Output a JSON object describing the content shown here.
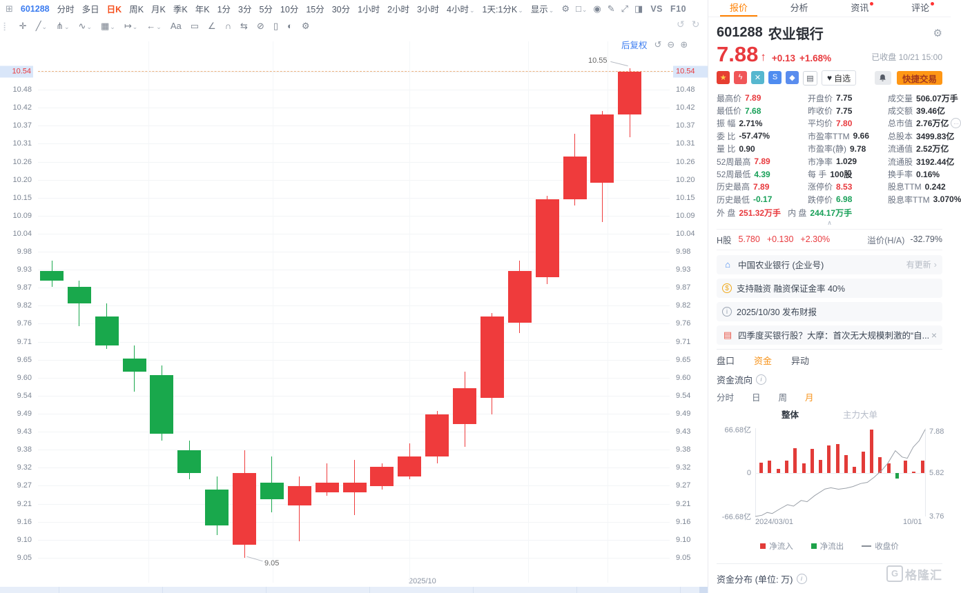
{
  "top_bar": {
    "window_icon": "⊞",
    "symbol": "601288",
    "timeframes": [
      "分时",
      "多日",
      "日K",
      "周K",
      "月K",
      "季K",
      "年K",
      "1分",
      "3分",
      "5分",
      "10分",
      "15分",
      "30分",
      "1小时",
      "2小时",
      "3小时"
    ],
    "timeframe_caret_item": "4小时",
    "active_timeframe": "日K",
    "interval_selector": "1天:1分K",
    "display_label": "显示",
    "vs_label": "VS",
    "f10_label": "F10",
    "icons": [
      {
        "name": "settings-icon",
        "glyph": "⚙"
      },
      {
        "name": "layout-icon",
        "glyph": "□",
        "caret": true
      },
      {
        "name": "camera-icon",
        "glyph": "◉"
      },
      {
        "name": "pencil-icon",
        "glyph": "✎"
      },
      {
        "name": "fullscreen-icon",
        "glyph": "⤢"
      },
      {
        "name": "sidebar-toggle-icon",
        "glyph": "◨"
      }
    ]
  },
  "panel_tabs": [
    {
      "label": "报价",
      "active": true,
      "dot": false
    },
    {
      "label": "分析",
      "active": false,
      "dot": false
    },
    {
      "label": "资讯",
      "active": false,
      "dot": true
    },
    {
      "label": "评论",
      "active": false,
      "dot": true
    }
  ],
  "draw_toolbar": [
    {
      "name": "move-icon",
      "glyph": "✛",
      "caret": false
    },
    {
      "name": "trendline-icon",
      "glyph": "╱",
      "caret": true
    },
    {
      "name": "pitchfork-icon",
      "glyph": "⋔",
      "caret": true
    },
    {
      "name": "zigzag-icon",
      "glyph": "∿",
      "caret": true
    },
    {
      "name": "pattern-icon",
      "glyph": "▦",
      "caret": true
    },
    {
      "name": "extend-line-icon",
      "glyph": "↦",
      "caret": true
    },
    {
      "name": "arrow-tool-icon",
      "glyph": "←",
      "caret": true
    },
    {
      "name": "text-tool-icon",
      "glyph": "Aa",
      "caret": false
    },
    {
      "name": "comment-icon",
      "glyph": "▭",
      "caret": false
    },
    {
      "name": "angle-icon",
      "glyph": "∠",
      "caret": false
    },
    {
      "name": "magnet-icon",
      "glyph": "∩",
      "caret": false
    },
    {
      "name": "sync-icon",
      "glyph": "⇆",
      "caret": false
    },
    {
      "name": "ban-icon",
      "glyph": "⊘",
      "caret": false
    },
    {
      "name": "trash-icon",
      "glyph": "▯",
      "caret": false
    },
    {
      "name": "compare-icon",
      "glyph": "◐",
      "caret": false
    },
    {
      "name": "tool-settings-icon",
      "glyph": "⚙",
      "caret": false
    }
  ],
  "undo_icon": "↺",
  "redo_icon": "↻",
  "chart": {
    "adjust_label": "后复权",
    "zoom_icons": [
      {
        "name": "reset-icon",
        "glyph": "↺"
      },
      {
        "name": "zoom-out-icon",
        "glyph": "⊖"
      },
      {
        "name": "zoom-in-icon",
        "glyph": "⊕"
      }
    ],
    "axis_labels": [
      "10.54",
      "10.48",
      "10.42",
      "10.37",
      "10.31",
      "10.26",
      "10.20",
      "10.15",
      "10.09",
      "10.04",
      "9.98",
      "9.93",
      "9.87",
      "9.82",
      "9.76",
      "9.71",
      "9.65",
      "9.60",
      "9.54",
      "9.49",
      "9.43",
      "9.38",
      "9.32",
      "9.27",
      "9.21",
      "9.16",
      "9.10",
      "9.05"
    ],
    "current_price_label": "10.54",
    "high_annotation": "10.55",
    "low_annotation": "9.05",
    "x_label": "2025/10",
    "up_color": "#ef3b3c",
    "down_color": "#19a84c"
  },
  "chart_data": [
    {
      "type": "candlestick",
      "title": "601288 农业银行 日K 后复权",
      "ylim": [
        9.05,
        10.55
      ],
      "x_label": "2025/10",
      "candles": [
        {
          "o": 9.93,
          "h": 9.96,
          "l": 9.88,
          "c": 9.9
        },
        {
          "o": 9.88,
          "h": 9.9,
          "l": 9.76,
          "c": 9.83
        },
        {
          "o": 9.79,
          "h": 9.83,
          "l": 9.69,
          "c": 9.7
        },
        {
          "o": 9.66,
          "h": 9.7,
          "l": 9.56,
          "c": 9.62
        },
        {
          "o": 9.61,
          "h": 9.64,
          "l": 9.41,
          "c": 9.43
        },
        {
          "o": 9.38,
          "h": 9.41,
          "l": 9.29,
          "c": 9.31
        },
        {
          "o": 9.26,
          "h": 9.3,
          "l": 9.12,
          "c": 9.15
        },
        {
          "o": 9.09,
          "h": 9.38,
          "l": 9.05,
          "c": 9.31
        },
        {
          "o": 9.28,
          "h": 9.36,
          "l": 9.19,
          "c": 9.23
        },
        {
          "o": 9.21,
          "h": 9.3,
          "l": 9.1,
          "c": 9.27
        },
        {
          "o": 9.25,
          "h": 9.34,
          "l": 9.24,
          "c": 9.28
        },
        {
          "o": 9.25,
          "h": 9.35,
          "l": 9.18,
          "c": 9.28
        },
        {
          "o": 9.27,
          "h": 9.34,
          "l": 9.26,
          "c": 9.33
        },
        {
          "o": 9.3,
          "h": 9.4,
          "l": 9.29,
          "c": 9.36
        },
        {
          "o": 9.36,
          "h": 9.5,
          "l": 9.34,
          "c": 9.49
        },
        {
          "o": 9.46,
          "h": 9.62,
          "l": 9.39,
          "c": 9.57
        },
        {
          "o": 9.54,
          "h": 9.8,
          "l": 9.49,
          "c": 9.79
        },
        {
          "o": 9.77,
          "h": 9.96,
          "l": 9.74,
          "c": 9.93
        },
        {
          "o": 9.91,
          "h": 10.16,
          "l": 9.89,
          "c": 10.15
        },
        {
          "o": 10.15,
          "h": 10.35,
          "l": 10.13,
          "c": 10.28
        },
        {
          "o": 10.2,
          "h": 10.42,
          "l": 10.08,
          "c": 10.41
        },
        {
          "o": 10.41,
          "h": 10.55,
          "l": 10.34,
          "c": 10.54
        }
      ]
    },
    {
      "type": "bar+line",
      "title": "资金流向 (月)",
      "bar_unit": "亿",
      "bar_ylim": [
        -66.68,
        66.68
      ],
      "bars": [
        15,
        19,
        6,
        19,
        38,
        14,
        37,
        20,
        42,
        44,
        27,
        9,
        32,
        66.5,
        24,
        14,
        -9,
        19,
        1,
        19
      ],
      "line_name": "收盘价",
      "line_ylim": [
        3.76,
        7.88
      ],
      "line_points": [
        [
          0,
          3.76
        ],
        [
          0.04,
          3.82
        ],
        [
          0.07,
          3.95
        ],
        [
          0.1,
          3.9
        ],
        [
          0.145,
          4.12
        ],
        [
          0.19,
          4.32
        ],
        [
          0.225,
          4.25
        ],
        [
          0.27,
          4.52
        ],
        [
          0.305,
          4.46
        ],
        [
          0.35,
          4.75
        ],
        [
          0.41,
          5.06
        ],
        [
          0.445,
          5.12
        ],
        [
          0.49,
          5.05
        ],
        [
          0.535,
          5.1
        ],
        [
          0.575,
          5.18
        ],
        [
          0.62,
          5.32
        ],
        [
          0.66,
          5.38
        ],
        [
          0.7,
          5.62
        ],
        [
          0.745,
          5.95
        ],
        [
          0.78,
          6.28
        ],
        [
          0.825,
          6.88
        ],
        [
          0.865,
          6.58
        ],
        [
          0.895,
          6.52
        ],
        [
          0.93,
          7.05
        ],
        [
          0.965,
          7.35
        ],
        [
          1,
          7.88
        ]
      ],
      "x_labels": [
        "2024/03/01",
        "10/01"
      ]
    }
  ],
  "stock": {
    "code": "601288",
    "name": "农业银行",
    "price": "7.88",
    "arrow": "↑",
    "change": "+0.13",
    "change_pct": "+1.68%",
    "status": "已收盘 10/21 15:00",
    "watch_label": "自选",
    "heart_icon": "♥",
    "quick_trade_label": "快捷交易"
  },
  "badges": [
    {
      "name": "cn-flag-badge",
      "glyph": "★",
      "bg": "#e63e31",
      "fg": "#ffd04e"
    },
    {
      "name": "margin-badge",
      "glyph": "ϟ",
      "bg": "#f05658",
      "fg": "#ffffff"
    },
    {
      "name": "exchange-badge",
      "glyph": "✕",
      "bg": "#56b7cf",
      "fg": "#ffffff"
    },
    {
      "name": "s-badge",
      "glyph": "S",
      "bg": "#4f8cf0",
      "fg": "#ffffff"
    },
    {
      "name": "tag-badge",
      "glyph": "◆",
      "bg": "#5a8dee",
      "fg": "#ffffff"
    },
    {
      "name": "bookmark-badge",
      "glyph": "▤",
      "bg": "#ffffff",
      "fg": "#555b66",
      "border": true
    }
  ],
  "stats": [
    {
      "l": "最高价",
      "v": "7.89",
      "c": "r"
    },
    {
      "l": "开盘价",
      "v": "7.75",
      "c": "d"
    },
    {
      "l": "成交量",
      "v": "506.07万手",
      "c": "d"
    },
    {
      "l": "最低价",
      "v": "7.68",
      "c": "g"
    },
    {
      "l": "昨收价",
      "v": "7.75",
      "c": "d"
    },
    {
      "l": "成交额",
      "v": "39.46亿",
      "c": "d"
    },
    {
      "l": "振 幅",
      "v": "2.71%",
      "c": "d"
    },
    {
      "l": "平均价",
      "v": "7.80",
      "c": "r"
    },
    {
      "l": "总市值",
      "v": "2.76万亿",
      "c": "d",
      "more": true
    },
    {
      "l": "委 比",
      "v": "-57.47%",
      "c": "d"
    },
    {
      "l": "市盈率TTM",
      "v": "9.66",
      "c": "d"
    },
    {
      "l": "总股本",
      "v": "3499.83亿",
      "c": "d"
    },
    {
      "l": "量 比",
      "v": "0.90",
      "c": "d"
    },
    {
      "l": "市盈率(静)",
      "v": "9.78",
      "c": "d"
    },
    {
      "l": "流通值",
      "v": "2.52万亿",
      "c": "d"
    },
    {
      "l": "52周最高",
      "v": "7.89",
      "c": "r"
    },
    {
      "l": "市净率",
      "v": "1.029",
      "c": "d"
    },
    {
      "l": "流通股",
      "v": "3192.44亿",
      "c": "d"
    },
    {
      "l": "52周最低",
      "v": "4.39",
      "c": "g"
    },
    {
      "l": "每 手",
      "v": "100股",
      "c": "d"
    },
    {
      "l": "换手率",
      "v": "0.16%",
      "c": "d"
    },
    {
      "l": "历史最高",
      "v": "7.89",
      "c": "r"
    },
    {
      "l": "涨停价",
      "v": "8.53",
      "c": "r"
    },
    {
      "l": "股息TTM",
      "v": "0.242",
      "c": "d"
    },
    {
      "l": "历史最低",
      "v": "-0.17",
      "c": "g"
    },
    {
      "l": "跌停价",
      "v": "6.98",
      "c": "g"
    },
    {
      "l": "股息率TTM",
      "v": "3.070%",
      "c": "d"
    }
  ],
  "flow_row": {
    "label_out": "外 盘",
    "value_out": "251.32万手",
    "label_in": "内 盘",
    "value_in": "244.17万手"
  },
  "collapse_icon": "∧",
  "hshare": {
    "label": "H股",
    "price": "5.780",
    "change": "+0.130",
    "pct": "+2.30%",
    "premium_label": "溢价(H/A)",
    "premium": "-32.79%"
  },
  "news": [
    {
      "icon": "building-icon",
      "glyph": "⌂",
      "color": "#4d8df0",
      "text": "中国农业银行 (企业号)",
      "right": "有更新",
      "arrow": "›"
    },
    {
      "icon": "financing-icon",
      "glyph": "$",
      "color": "#f0a818",
      "circle": true,
      "text": "支持融资 融资保证金率 40%"
    },
    {
      "icon": "info-icon",
      "glyph": "i",
      "color": "#9aa4b2",
      "circle": true,
      "text": "2025/10/30 发布财报"
    },
    {
      "icon": "news-doc-icon",
      "glyph": "▤",
      "color": "#e8584a",
      "text": "四季度买银行股？大摩：首次无大规模刺激的“自...",
      "close": "×"
    }
  ],
  "detail_tabs": [
    {
      "label": "盘口",
      "active": false
    },
    {
      "label": "资金",
      "active": true
    },
    {
      "label": "异动",
      "active": false
    }
  ],
  "fund_flow": {
    "title": "资金流向",
    "periods": [
      "分时",
      "日",
      "周",
      "月"
    ],
    "active_period": "月",
    "mode_overall": "整体",
    "mode_main": "主力大单",
    "y_left": [
      "66.68亿",
      "0",
      "-66.68亿"
    ],
    "y_right": [
      "7.88",
      "5.82",
      "3.76"
    ],
    "x_labels": [
      "2024/03/01",
      "10/01"
    ],
    "legend": [
      {
        "label": "净流入",
        "color": "#e23b38",
        "type": "square"
      },
      {
        "label": "净流出",
        "color": "#1fa24a",
        "type": "square"
      },
      {
        "label": "收盘价",
        "color": "#878d96",
        "type": "line"
      }
    ],
    "bar_up_color": "#e23b38",
    "bar_down_color": "#1fa24a"
  },
  "fund_dist": {
    "title": "资金分布 (单位: 万)"
  },
  "watermark": {
    "g": "G",
    "text": "格隆汇"
  }
}
